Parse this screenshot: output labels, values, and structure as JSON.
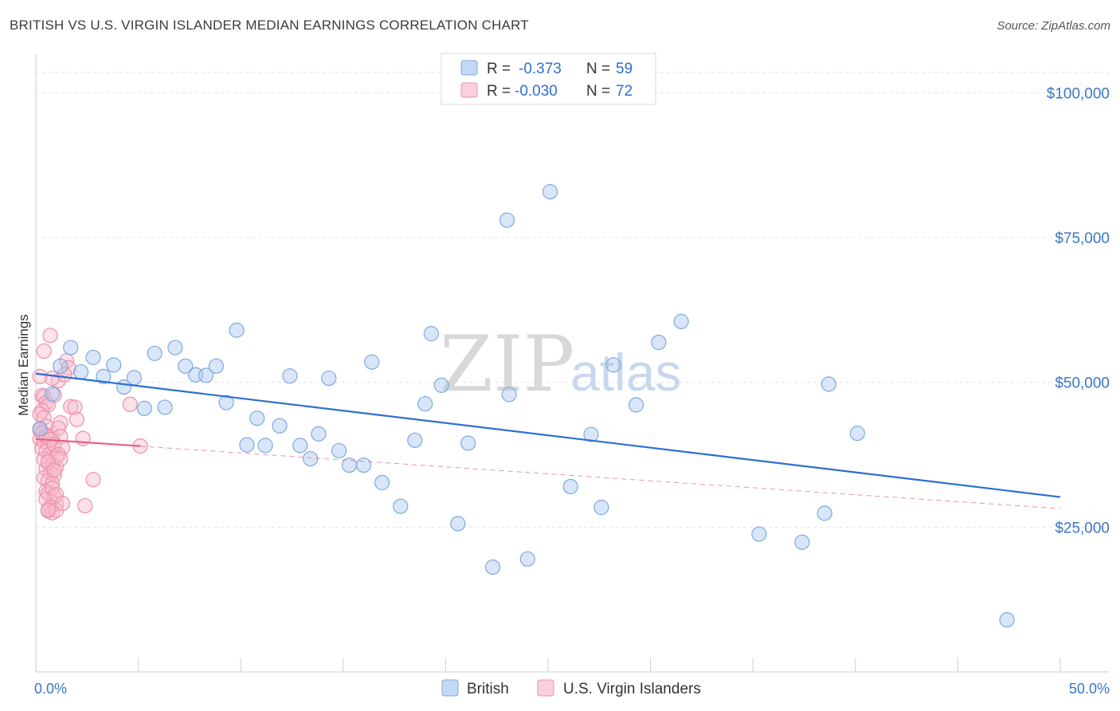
{
  "header": {
    "title": "BRITISH VS U.S. VIRGIN ISLANDER MEDIAN EARNINGS CORRELATION CHART",
    "source": "Source: ZipAtlas.com"
  },
  "watermark": {
    "zip": "ZIP",
    "atlas": "atlas"
  },
  "legend": {
    "rows": [
      {
        "r_label": "R =",
        "r_value": "-0.373",
        "n_label": "N =",
        "n_value": "59"
      },
      {
        "r_label": "R =",
        "r_value": "-0.030",
        "n_label": "N =",
        "n_value": "72"
      }
    ]
  },
  "bottom_legend": {
    "british": "British",
    "usvi": "U.S. Virgin Islanders"
  },
  "colors": {
    "british_fill": "#a9c8f0",
    "british_stroke": "#7fa9e0",
    "british_line": "#2c6fd1",
    "usvi_fill": "#f7bccd",
    "usvi_stroke": "#ee8fac",
    "usvi_line": "#e8608a",
    "tick_label": "#3a76c8"
  },
  "chart_data": {
    "type": "scatter",
    "title": "BRITISH VS U.S. VIRGIN ISLANDER MEDIAN EARNINGS CORRELATION CHART",
    "xlabel": "",
    "ylabel": "Median Earnings",
    "xlim": [
      0,
      50
    ],
    "ylim": [
      0,
      105000
    ],
    "x_tick_labels": [
      "0.0%",
      "50.0%"
    ],
    "y_ticks": [
      25000,
      50000,
      75000,
      100000
    ],
    "y_tick_labels": [
      "$25,000",
      "$50,000",
      "$75,000",
      "$100,000"
    ],
    "series": [
      {
        "name": "British",
        "R": -0.373,
        "N": 59,
        "trend": {
          "x0": 0,
          "y0": 51500,
          "x1": 50,
          "y1": 30200
        },
        "points": [
          [
            0.8,
            48000
          ],
          [
            0.2,
            42000
          ],
          [
            1.2,
            52800
          ],
          [
            1.7,
            56000
          ],
          [
            2.2,
            51800
          ],
          [
            2.8,
            54300
          ],
          [
            3.3,
            51000
          ],
          [
            3.8,
            53000
          ],
          [
            4.3,
            49200
          ],
          [
            4.8,
            50800
          ],
          [
            5.3,
            45500
          ],
          [
            5.8,
            55000
          ],
          [
            6.3,
            45700
          ],
          [
            6.8,
            56000
          ],
          [
            7.3,
            52800
          ],
          [
            7.8,
            51300
          ],
          [
            8.3,
            51200
          ],
          [
            8.8,
            52800
          ],
          [
            9.3,
            46500
          ],
          [
            9.8,
            59000
          ],
          [
            10.3,
            39200
          ],
          [
            10.8,
            43800
          ],
          [
            11.2,
            39100
          ],
          [
            11.9,
            42500
          ],
          [
            12.4,
            51100
          ],
          [
            12.9,
            39100
          ],
          [
            13.4,
            36800
          ],
          [
            13.8,
            41100
          ],
          [
            14.3,
            50700
          ],
          [
            14.8,
            38200
          ],
          [
            15.3,
            35700
          ],
          [
            16.0,
            35700
          ],
          [
            16.4,
            53500
          ],
          [
            16.9,
            32700
          ],
          [
            17.8,
            28600
          ],
          [
            18.5,
            40000
          ],
          [
            19.0,
            46300
          ],
          [
            19.3,
            58400
          ],
          [
            19.8,
            49500
          ],
          [
            20.6,
            25600
          ],
          [
            21.1,
            39500
          ],
          [
            22.3,
            18100
          ],
          [
            23.1,
            47900
          ],
          [
            23.0,
            78000
          ],
          [
            24.0,
            19500
          ],
          [
            25.1,
            82900
          ],
          [
            26.1,
            32000
          ],
          [
            27.1,
            41000
          ],
          [
            27.6,
            28400
          ],
          [
            28.2,
            53000
          ],
          [
            29.3,
            46100
          ],
          [
            30.4,
            56900
          ],
          [
            31.5,
            60500
          ],
          [
            35.3,
            23800
          ],
          [
            37.4,
            22400
          ],
          [
            38.5,
            27400
          ],
          [
            38.7,
            49700
          ],
          [
            40.1,
            41200
          ],
          [
            47.4,
            9000
          ]
        ]
      },
      {
        "name": "U.S. Virgin Islanders",
        "R": -0.03,
        "N": 72,
        "trend": {
          "x0": 0,
          "y0": 40200,
          "x1": 5.1,
          "y1": 39000
        },
        "trend_dashed": {
          "x0": 0,
          "y0": 40200,
          "x1": 50,
          "y1": 28200
        },
        "points": [
          [
            0.2,
            51000
          ],
          [
            0.3,
            47700
          ],
          [
            0.4,
            47500
          ],
          [
            0.5,
            46500
          ],
          [
            0.6,
            46100
          ],
          [
            0.3,
            45100
          ],
          [
            0.2,
            44500
          ],
          [
            0.4,
            43900
          ],
          [
            0.5,
            42400
          ],
          [
            0.2,
            41800
          ],
          [
            0.3,
            41200
          ],
          [
            0.6,
            40800
          ],
          [
            0.8,
            40500
          ],
          [
            0.2,
            40200
          ],
          [
            0.4,
            39800
          ],
          [
            0.6,
            39400
          ],
          [
            0.9,
            39100
          ],
          [
            0.3,
            38600
          ],
          [
            0.5,
            38100
          ],
          [
            0.7,
            37600
          ],
          [
            1.0,
            37200
          ],
          [
            0.4,
            36700
          ],
          [
            0.6,
            36200
          ],
          [
            0.8,
            35800
          ],
          [
            1.0,
            35400
          ],
          [
            0.5,
            35000
          ],
          [
            0.7,
            34400
          ],
          [
            0.9,
            34000
          ],
          [
            0.4,
            33500
          ],
          [
            0.6,
            33000
          ],
          [
            0.8,
            32500
          ],
          [
            0.5,
            31200
          ],
          [
            0.6,
            30800
          ],
          [
            0.9,
            30300
          ],
          [
            0.5,
            29800
          ],
          [
            1.0,
            29000
          ],
          [
            0.7,
            28400
          ],
          [
            0.6,
            27800
          ],
          [
            0.8,
            27500
          ],
          [
            1.0,
            27900
          ],
          [
            0.7,
            58100
          ],
          [
            0.4,
            55400
          ],
          [
            1.5,
            53700
          ],
          [
            1.6,
            52500
          ],
          [
            1.1,
            50300
          ],
          [
            0.8,
            50700
          ],
          [
            0.9,
            47800
          ],
          [
            1.7,
            45800
          ],
          [
            1.9,
            45700
          ],
          [
            2.0,
            43600
          ],
          [
            1.2,
            43000
          ],
          [
            1.1,
            42100
          ],
          [
            0.3,
            41300
          ],
          [
            0.5,
            40700
          ],
          [
            1.2,
            40600
          ],
          [
            0.7,
            40100
          ],
          [
            2.3,
            40300
          ],
          [
            0.9,
            39300
          ],
          [
            1.3,
            38700
          ],
          [
            1.1,
            37500
          ],
          [
            1.2,
            36800
          ],
          [
            0.6,
            36300
          ],
          [
            0.9,
            34800
          ],
          [
            2.8,
            33200
          ],
          [
            0.8,
            31700
          ],
          [
            1.0,
            30600
          ],
          [
            1.3,
            29100
          ],
          [
            2.4,
            28700
          ],
          [
            0.6,
            28000
          ],
          [
            4.6,
            46200
          ],
          [
            5.1,
            39000
          ],
          [
            1.4,
            51300
          ]
        ]
      }
    ],
    "legend_position": "top-center",
    "grid": true
  }
}
